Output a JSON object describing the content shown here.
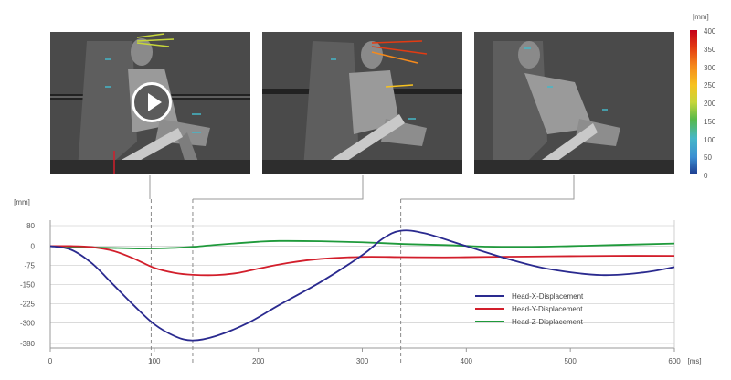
{
  "video": {
    "play_label": "Play video"
  },
  "colorbar": {
    "unit": "[mm]",
    "ticks": [
      "400",
      "350",
      "300",
      "250",
      "200",
      "150",
      "100",
      "50",
      "0"
    ]
  },
  "chart_data": {
    "type": "line",
    "title": "",
    "xlabel": "[ms]",
    "ylabel": "[mm]",
    "xlim": [
      0,
      600
    ],
    "ylim": [
      -380,
      80
    ],
    "xticks": [
      0,
      100,
      200,
      300,
      400,
      500,
      600
    ],
    "yticks": [
      80,
      0,
      -75,
      -150,
      -225,
      -300,
      -380
    ],
    "legend_position": "bottom-right",
    "markers_ms": [
      97,
      137,
      337
    ],
    "series": [
      {
        "name": "Head-X-Displacement",
        "color": "#2a2a8f",
        "x": [
          0,
          20,
          40,
          60,
          80,
          100,
          120,
          137,
          160,
          190,
          220,
          260,
          300,
          320,
          337,
          360,
          400,
          440,
          480,
          530,
          570,
          600
        ],
        "y": [
          0,
          -14,
          -67,
          -148,
          -230,
          -305,
          -352,
          -368,
          -350,
          -300,
          -230,
          -140,
          -35,
          30,
          60,
          50,
          0,
          -50,
          -90,
          -113,
          -103,
          -82
        ]
      },
      {
        "name": "Head-Y-Displacement",
        "color": "#d21e2b",
        "x": [
          0,
          20,
          40,
          60,
          80,
          100,
          120,
          137,
          160,
          180,
          200,
          230,
          260,
          300,
          340,
          380,
          420,
          480,
          540,
          600
        ],
        "y": [
          0,
          0,
          -4,
          -18,
          -48,
          -85,
          -105,
          -112,
          -113,
          -105,
          -88,
          -65,
          -50,
          -42,
          -43,
          -44,
          -42,
          -40,
          -38,
          -38
        ]
      },
      {
        "name": "Head-Z-Displacement",
        "color": "#1f9a3b",
        "x": [
          0,
          40,
          80,
          100,
          120,
          137,
          160,
          200,
          220,
          260,
          300,
          340,
          380,
          420,
          460,
          500,
          540,
          600
        ],
        "y": [
          0,
          -5,
          -9,
          -9,
          -7,
          -3,
          5,
          17,
          20,
          19,
          15,
          8,
          4,
          -2,
          -3,
          0,
          4,
          10
        ]
      }
    ]
  }
}
